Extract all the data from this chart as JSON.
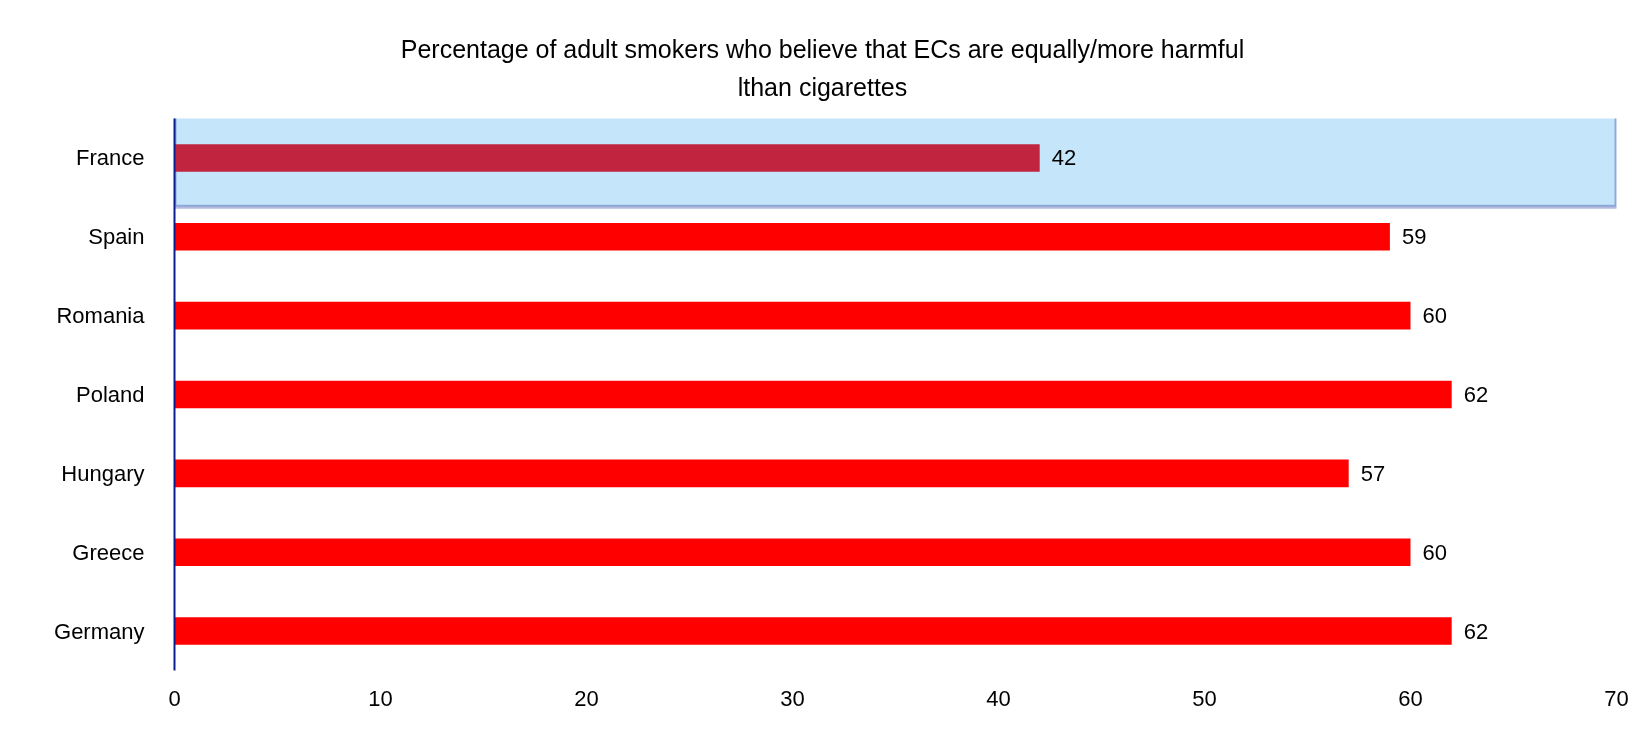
{
  "chart_data": {
    "type": "bar",
    "orientation": "horizontal",
    "title": "Percentage of adult smokers who believe that ECs are equally/more harmful lthan cigarettes",
    "categories": [
      "France",
      "Spain",
      "Romania",
      "Poland",
      "Hungary",
      "Greece",
      "Germany"
    ],
    "values": [
      42,
      59,
      60,
      62,
      57,
      60,
      62
    ],
    "colors": [
      "#c0243f",
      "#ff0000",
      "#ff0000",
      "#ff0000",
      "#ff0000",
      "#ff0000",
      "#ff0000"
    ],
    "xlim": [
      0,
      70
    ],
    "xticks": [
      0,
      10,
      20,
      30,
      40,
      50,
      60,
      70
    ],
    "data_labels": true,
    "bands": [
      {
        "axis": "y",
        "from": "France",
        "to": "France",
        "color": "#c5e5fa"
      }
    ]
  }
}
